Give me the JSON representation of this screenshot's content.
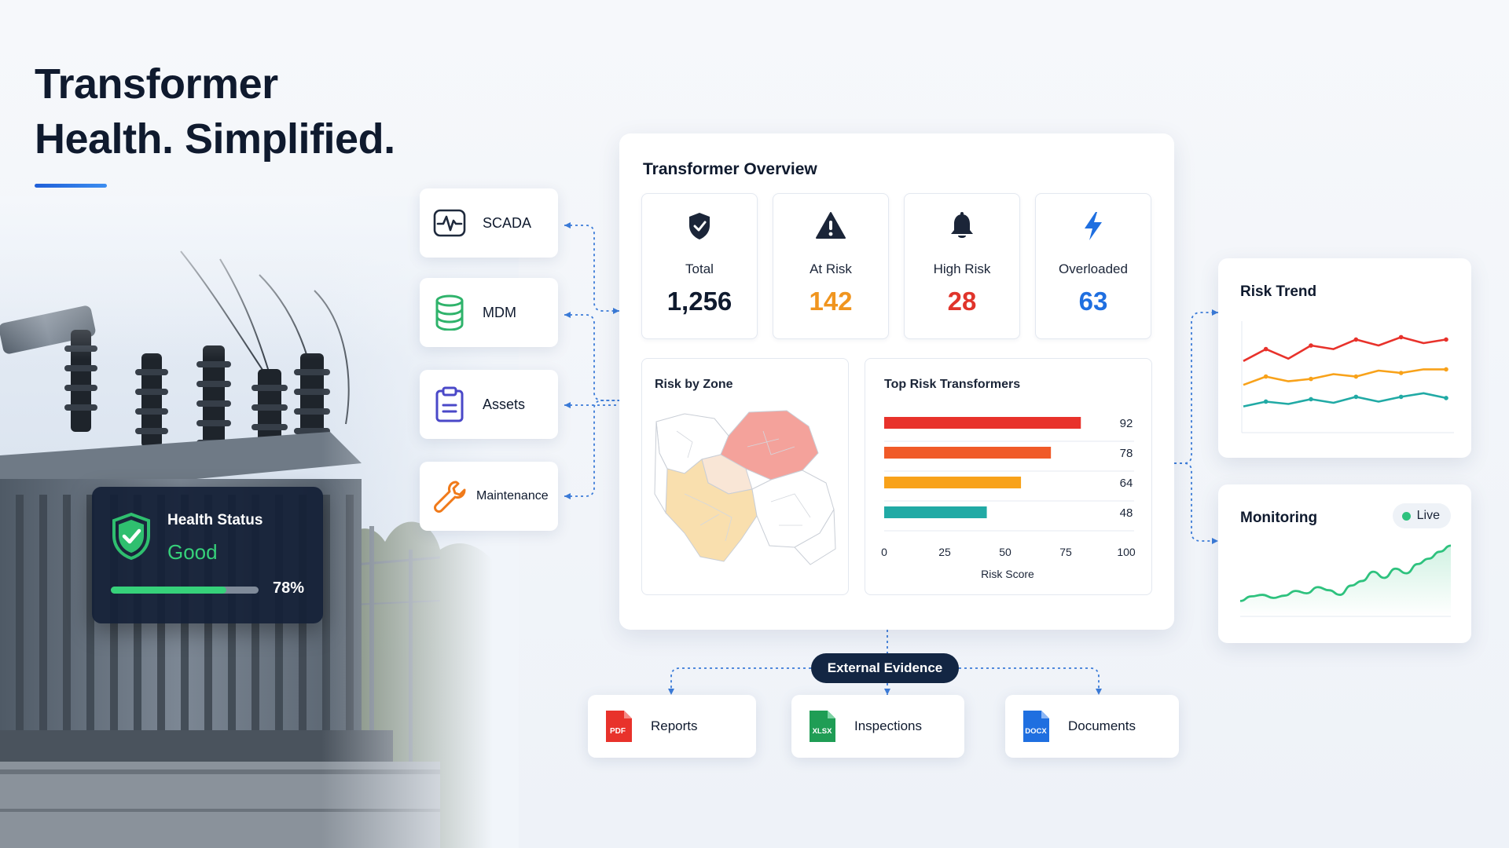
{
  "hero": {
    "title_line1": "Transformer",
    "title_line2": "Health. Simplified."
  },
  "health_status": {
    "label": "Health Status",
    "value": "Good",
    "percent": 78,
    "percent_label": "78%",
    "icon": "shield-check-icon"
  },
  "sources": [
    {
      "label": "SCADA",
      "icon": "waveform-icon"
    },
    {
      "label": "MDM",
      "icon": "database-icon"
    },
    {
      "label": "Assets",
      "icon": "clipboard-icon"
    },
    {
      "label": "Maintenance",
      "icon": "wrench-icon"
    }
  ],
  "overview": {
    "title": "Transformer Overview",
    "kpis": [
      {
        "label": "Total",
        "value": "1,256",
        "color": "#0f1a2e",
        "icon": "shield-icon"
      },
      {
        "label": "At Risk",
        "value": "142",
        "color": "#f0951f",
        "icon": "warning-icon"
      },
      {
        "label": "High Risk",
        "value": "28",
        "color": "#e0342b",
        "icon": "bell-icon"
      },
      {
        "label": "Overloaded",
        "value": "63",
        "color": "#1f6fe0",
        "icon": "lightning-icon"
      }
    ],
    "zone_title": "Risk by Zone",
    "top_risk_title": "Top Risk Transformers"
  },
  "chart_data": [
    {
      "type": "bar",
      "orientation": "horizontal",
      "title": "Top Risk Transformers",
      "categories": [
        "",
        "",
        "",
        ""
      ],
      "values": [
        92,
        78,
        64,
        48
      ],
      "colors": [
        "#e8322b",
        "#f05a28",
        "#f8a21a",
        "#21aaa5"
      ],
      "xlabel": "Risk Score",
      "xlim": [
        0,
        100
      ],
      "xticks": [
        0,
        25,
        50,
        75,
        100
      ],
      "data_labels": true
    },
    {
      "type": "line",
      "title": "Risk Trend",
      "x": [
        1,
        2,
        3,
        4,
        5,
        6,
        7,
        8,
        9,
        10
      ],
      "ylim": [
        0,
        100
      ],
      "series": [
        {
          "color": "#e8322b",
          "values": [
            60,
            70,
            62,
            73,
            70,
            78,
            73,
            80,
            75,
            78
          ]
        },
        {
          "color": "#f8a21a",
          "values": [
            40,
            47,
            43,
            45,
            49,
            47,
            52,
            50,
            53,
            53
          ]
        },
        {
          "color": "#21aaa5",
          "values": [
            22,
            26,
            24,
            28,
            25,
            30,
            26,
            30,
            33,
            29
          ]
        }
      ]
    },
    {
      "type": "area",
      "title": "Monitoring",
      "x": [
        1,
        2,
        3,
        4,
        5,
        6,
        7,
        8,
        9,
        10,
        11,
        12,
        13,
        14,
        15,
        16,
        17,
        18,
        19,
        20
      ],
      "ylim": [
        0,
        100
      ],
      "series": [
        {
          "color": "#2ec27e",
          "values": [
            20,
            26,
            28,
            24,
            27,
            33,
            30,
            38,
            34,
            28,
            40,
            46,
            58,
            50,
            62,
            56,
            68,
            75,
            84,
            92
          ]
        }
      ]
    }
  ],
  "risk_trend": {
    "title": "Risk Trend"
  },
  "monitoring": {
    "title": "Monitoring",
    "live_label": "Live"
  },
  "evidence": {
    "label": "External Evidence",
    "docs": [
      {
        "label": "Reports",
        "badge": "PDF",
        "color": "#e8322b",
        "icon": "pdf-file-icon"
      },
      {
        "label": "Inspections",
        "badge": "XLSX",
        "color": "#1f9d55",
        "icon": "xlsx-file-icon"
      },
      {
        "label": "Documents",
        "badge": "DOCX",
        "color": "#1f6fe0",
        "icon": "docx-file-icon"
      }
    ]
  },
  "colors": {
    "accent": "#1f5fd8",
    "connector": "#3b7bd8",
    "dark": "#132643"
  }
}
